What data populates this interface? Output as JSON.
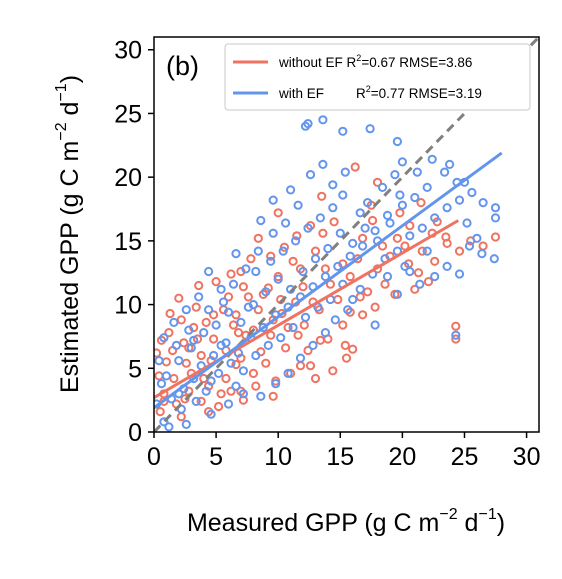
{
  "chart_data": {
    "type": "scatter",
    "panel_label": "(b)",
    "xlabel": {
      "prefix": "Measured GPP (g C m",
      "exp1": "−2",
      "mid": " d",
      "exp2": "−1",
      "suffix": ")"
    },
    "ylabel": {
      "prefix": "Estimated GPP (g C m",
      "exp1": "−2",
      "mid": " d",
      "exp2": "−1",
      "suffix": ")"
    },
    "xlim": [
      0,
      31
    ],
    "ylim": [
      0,
      31
    ],
    "xticks": [
      0,
      5,
      10,
      15,
      20,
      25,
      30
    ],
    "yticks": [
      0,
      5,
      10,
      15,
      20,
      25,
      30
    ],
    "grid": false,
    "legend_placement": "top-right",
    "reference_line": {
      "style": "dashed",
      "color": "#808080",
      "x": [
        0,
        31
      ],
      "y": [
        0,
        31
      ]
    },
    "series": [
      {
        "name": "without EF",
        "stats": {
          "r2_prefix": "R",
          "r2_exp": "2",
          "r2_value": "=0.67",
          "rmse": "RMSE=3.86"
        },
        "color": "#EF7361",
        "fit": {
          "x": [
            0,
            24.5
          ],
          "y": [
            2.7,
            16.6
          ]
        },
        "points": [
          [
            13.6,
            28.2
          ],
          [
            10.0,
            17.2
          ],
          [
            13.5,
            18.5
          ],
          [
            16.2,
            20.8
          ],
          [
            18.0,
            19.6
          ],
          [
            21.5,
            18.0
          ],
          [
            22.8,
            16.5
          ],
          [
            23.5,
            15.3
          ],
          [
            25.5,
            15.0
          ],
          [
            26.5,
            14.6
          ],
          [
            27.5,
            15.3
          ],
          [
            24.3,
            8.3
          ],
          [
            24.3,
            7.3
          ],
          [
            16.0,
            6.5
          ],
          [
            15.5,
            5.8
          ],
          [
            13.0,
            4.2
          ],
          [
            11.8,
            5.2
          ],
          [
            9.8,
            4.0
          ],
          [
            7.2,
            2.5
          ],
          [
            7.0,
            3.2
          ],
          [
            4.4,
            3.6
          ],
          [
            2.5,
            2.6
          ],
          [
            2.0,
            10.5
          ],
          [
            3.6,
            11.5
          ],
          [
            7.0,
            12.6
          ],
          [
            7.8,
            13.6
          ],
          [
            10.5,
            14.5
          ],
          [
            11.5,
            15.4
          ],
          [
            12.6,
            16.2
          ],
          [
            14.5,
            16.5
          ],
          [
            17.5,
            17.8
          ],
          [
            19.6,
            15.2
          ],
          [
            20.5,
            13.2
          ],
          [
            21.3,
            12.5
          ],
          [
            22.1,
            11.8
          ],
          [
            19.4,
            10.8
          ],
          [
            17.2,
            11.0
          ],
          [
            16.8,
            9.2
          ],
          [
            15.2,
            8.4
          ],
          [
            14.0,
            7.3
          ],
          [
            13.3,
            9.6
          ],
          [
            12.1,
            8.4
          ],
          [
            11.4,
            10.2
          ],
          [
            10.3,
            9.3
          ],
          [
            9.2,
            11.3
          ],
          [
            8.4,
            9.6
          ],
          [
            7.6,
            10.6
          ],
          [
            6.4,
            8.4
          ],
          [
            5.6,
            9.6
          ],
          [
            4.8,
            7.3
          ],
          [
            3.2,
            8.2
          ],
          [
            1.3,
            9.3
          ],
          [
            0.6,
            7.2
          ],
          [
            1.5,
            6.4
          ],
          [
            2.6,
            5.4
          ],
          [
            3.5,
            7.3
          ],
          [
            4.6,
            5.6
          ],
          [
            5.8,
            6.4
          ],
          [
            6.6,
            5.3
          ],
          [
            7.4,
            7.6
          ],
          [
            8.6,
            6.3
          ],
          [
            9.4,
            7.6
          ],
          [
            10.6,
            6.6
          ],
          [
            11.6,
            7.6
          ],
          [
            12.4,
            6.4
          ],
          [
            13.4,
            7.2
          ],
          [
            14.8,
            10.4
          ],
          [
            15.8,
            12.2
          ],
          [
            16.4,
            13.6
          ],
          [
            18.0,
            12.8
          ],
          [
            19.0,
            13.8
          ],
          [
            20.2,
            14.6
          ],
          [
            21.6,
            14.2
          ],
          [
            22.6,
            13.4
          ],
          [
            23.6,
            14.8
          ],
          [
            24.6,
            14.2
          ],
          [
            17.6,
            16.6
          ],
          [
            18.4,
            14.6
          ],
          [
            16.8,
            15.2
          ],
          [
            9.6,
            2.8
          ],
          [
            8.2,
            3.6
          ],
          [
            5.8,
            4.2
          ],
          [
            3.0,
            4.6
          ],
          [
            1.6,
            4.2
          ],
          [
            0.8,
            3.0
          ],
          [
            0.5,
            1.6
          ],
          [
            2.2,
            1.2
          ],
          [
            3.8,
            2.4
          ],
          [
            5.2,
            2.0
          ],
          [
            6.2,
            3.2
          ],
          [
            2.8,
            6.6
          ],
          [
            4.2,
            8.6
          ],
          [
            6.0,
            10.6
          ],
          [
            8.0,
            8.0
          ],
          [
            10.0,
            12.2
          ],
          [
            12.0,
            11.4
          ],
          [
            13.8,
            12.8
          ],
          [
            11.0,
            4.6
          ],
          [
            12.6,
            5.2
          ],
          [
            14.4,
            4.8
          ],
          [
            15.4,
            6.8
          ],
          [
            1.0,
            5.5
          ],
          [
            0.4,
            4.4
          ],
          [
            1.8,
            2.2
          ],
          [
            3.4,
            9.8
          ],
          [
            2.2,
            8.8
          ],
          [
            9.0,
            5.4
          ],
          [
            10.8,
            8.2
          ],
          [
            4.0,
            4.2
          ],
          [
            7.0,
            5.8
          ],
          [
            6.8,
            7.8
          ],
          [
            8.8,
            10.8
          ],
          [
            11.8,
            12.8
          ],
          [
            13.0,
            14.2
          ],
          [
            15.2,
            13.2
          ],
          [
            16.6,
            10.6
          ],
          [
            18.6,
            11.6
          ],
          [
            20.6,
            16.2
          ],
          [
            22.4,
            15.6
          ],
          [
            19.8,
            17.2
          ],
          [
            21.0,
            11.2
          ],
          [
            17.8,
            9.8
          ],
          [
            5.0,
            11.8
          ],
          [
            6.2,
            12.4
          ],
          [
            3.8,
            6.0
          ],
          [
            4.8,
            9.2
          ],
          [
            5.4,
            3.0
          ],
          [
            8.0,
            4.6
          ],
          [
            9.6,
            8.8
          ],
          [
            12.8,
            10.2
          ],
          [
            14.2,
            11.6
          ],
          [
            15.8,
            9.4
          ],
          [
            1.2,
            7.8
          ],
          [
            2.4,
            7.0
          ],
          [
            0.2,
            6.2
          ],
          [
            0.8,
            2.4
          ],
          [
            2.8,
            3.2
          ],
          [
            4.4,
            1.6
          ],
          [
            6.6,
            9.2
          ],
          [
            7.2,
            11.4
          ],
          [
            10.2,
            10.4
          ],
          [
            11.2,
            13.4
          ],
          [
            13.6,
            15.6
          ],
          [
            8.4,
            15.2
          ],
          [
            9.4,
            13.8
          ]
        ]
      },
      {
        "name": "with EF",
        "stats": {
          "r2_prefix": "R",
          "r2_exp": "2",
          "r2_value": "=0.77",
          "rmse": "RMSE=3.19"
        },
        "color": "#6495ED",
        "fit": {
          "x": [
            0,
            28
          ],
          "y": [
            1.9,
            21.9
          ]
        },
        "points": [
          [
            13.6,
            24.5
          ],
          [
            12.2,
            24.0
          ],
          [
            12.4,
            24.2
          ],
          [
            15.2,
            23.6
          ],
          [
            17.4,
            23.8
          ],
          [
            19.6,
            22.8
          ],
          [
            20.0,
            21.2
          ],
          [
            23.8,
            21.0
          ],
          [
            25.0,
            19.6
          ],
          [
            26.5,
            18.0
          ],
          [
            27.5,
            16.8
          ],
          [
            27.5,
            17.6
          ],
          [
            24.3,
            7.6
          ],
          [
            16.0,
            10.4
          ],
          [
            17.8,
            8.4
          ],
          [
            18.8,
            12.2
          ],
          [
            19.6,
            10.8
          ],
          [
            20.6,
            12.6
          ],
          [
            21.4,
            11.6
          ],
          [
            22.6,
            12.2
          ],
          [
            23.6,
            13.0
          ],
          [
            24.6,
            12.4
          ],
          [
            25.4,
            14.6
          ],
          [
            26.0,
            15.2
          ],
          [
            18.4,
            19.2
          ],
          [
            17.2,
            18.0
          ],
          [
            16.6,
            17.2
          ],
          [
            15.2,
            18.6
          ],
          [
            14.4,
            19.4
          ],
          [
            13.6,
            21.0
          ],
          [
            12.6,
            20.2
          ],
          [
            11.6,
            17.8
          ],
          [
            10.6,
            16.4
          ],
          [
            9.6,
            15.6
          ],
          [
            8.4,
            14.2
          ],
          [
            7.4,
            12.8
          ],
          [
            6.6,
            14.0
          ],
          [
            5.4,
            11.2
          ],
          [
            4.4,
            12.6
          ],
          [
            3.6,
            10.6
          ],
          [
            2.6,
            9.6
          ],
          [
            1.6,
            8.6
          ],
          [
            0.8,
            7.4
          ],
          [
            0.4,
            5.6
          ],
          [
            0.6,
            3.8
          ],
          [
            1.4,
            2.6
          ],
          [
            2.4,
            3.4
          ],
          [
            3.4,
            2.4
          ],
          [
            4.6,
            1.4
          ],
          [
            6.0,
            2.2
          ],
          [
            7.2,
            3.0
          ],
          [
            8.6,
            2.8
          ],
          [
            9.8,
            3.8
          ],
          [
            10.8,
            4.6
          ],
          [
            11.8,
            5.8
          ],
          [
            12.8,
            6.8
          ],
          [
            13.8,
            7.8
          ],
          [
            14.6,
            8.8
          ],
          [
            15.6,
            9.6
          ],
          [
            16.6,
            11.2
          ],
          [
            17.6,
            12.4
          ],
          [
            18.6,
            13.6
          ],
          [
            19.6,
            14.2
          ],
          [
            20.6,
            15.4
          ],
          [
            21.6,
            16.0
          ],
          [
            22.6,
            16.8
          ],
          [
            23.6,
            17.6
          ],
          [
            24.6,
            18.2
          ],
          [
            25.6,
            18.8
          ],
          [
            2.0,
            5.6
          ],
          [
            3.0,
            6.6
          ],
          [
            4.0,
            7.8
          ],
          [
            5.0,
            8.4
          ],
          [
            6.0,
            9.4
          ],
          [
            7.0,
            8.6
          ],
          [
            8.0,
            10.0
          ],
          [
            9.0,
            11.0
          ],
          [
            10.0,
            12.0
          ],
          [
            11.0,
            11.2
          ],
          [
            12.0,
            12.6
          ],
          [
            13.0,
            13.6
          ],
          [
            14.0,
            14.4
          ],
          [
            15.0,
            15.6
          ],
          [
            16.0,
            14.8
          ],
          [
            17.0,
            16.0
          ],
          [
            18.0,
            15.0
          ],
          [
            19.0,
            16.4
          ],
          [
            20.0,
            17.8
          ],
          [
            21.0,
            18.4
          ],
          [
            22.0,
            19.2
          ],
          [
            1.0,
            4.4
          ],
          [
            1.8,
            6.8
          ],
          [
            2.8,
            8.0
          ],
          [
            3.8,
            5.2
          ],
          [
            4.8,
            6.0
          ],
          [
            5.8,
            7.0
          ],
          [
            6.8,
            6.2
          ],
          [
            7.8,
            7.4
          ],
          [
            8.8,
            8.2
          ],
          [
            9.8,
            9.2
          ],
          [
            10.8,
            9.8
          ],
          [
            11.8,
            10.6
          ],
          [
            12.8,
            11.4
          ],
          [
            13.8,
            12.2
          ],
          [
            14.8,
            13.0
          ],
          [
            15.8,
            13.8
          ],
          [
            16.8,
            14.6
          ],
          [
            17.8,
            15.8
          ],
          [
            18.8,
            17.0
          ],
          [
            19.8,
            18.6
          ],
          [
            0.2,
            2.2
          ],
          [
            0.8,
            0.8
          ],
          [
            2.2,
            1.8
          ],
          [
            3.2,
            4.2
          ],
          [
            4.2,
            3.2
          ],
          [
            5.2,
            4.6
          ],
          [
            6.2,
            5.4
          ],
          [
            7.2,
            4.8
          ],
          [
            8.2,
            6.0
          ],
          [
            9.2,
            6.8
          ],
          [
            10.2,
            7.4
          ],
          [
            11.2,
            8.2
          ],
          [
            12.2,
            9.0
          ],
          [
            13.2,
            9.8
          ],
          [
            14.2,
            10.4
          ],
          [
            15.2,
            11.6
          ],
          [
            1.2,
            0.4
          ],
          [
            2.6,
            0.6
          ],
          [
            4.4,
            9.6
          ],
          [
            5.6,
            10.2
          ],
          [
            6.4,
            11.6
          ],
          [
            8.2,
            12.6
          ],
          [
            9.4,
            13.4
          ],
          [
            10.4,
            14.2
          ],
          [
            11.4,
            15.0
          ],
          [
            12.4,
            16.0
          ],
          [
            13.4,
            16.8
          ],
          [
            14.4,
            17.6
          ],
          [
            15.4,
            20.4
          ],
          [
            11.0,
            19.0
          ],
          [
            9.6,
            18.2
          ],
          [
            8.6,
            16.6
          ],
          [
            19.4,
            20.2
          ],
          [
            21.2,
            20.4
          ],
          [
            22.4,
            21.4
          ],
          [
            23.4,
            20.4
          ],
          [
            24.4,
            19.6
          ],
          [
            25.2,
            16.4
          ],
          [
            26.4,
            14.0
          ],
          [
            27.4,
            13.6
          ],
          [
            22.0,
            14.2
          ],
          [
            20.2,
            13.0
          ],
          [
            3.2,
            7.2
          ],
          [
            2.0,
            3.0
          ],
          [
            5.4,
            6.8
          ],
          [
            7.6,
            9.8
          ],
          [
            4.6,
            4.0
          ],
          [
            6.6,
            3.6
          ]
        ]
      }
    ]
  }
}
